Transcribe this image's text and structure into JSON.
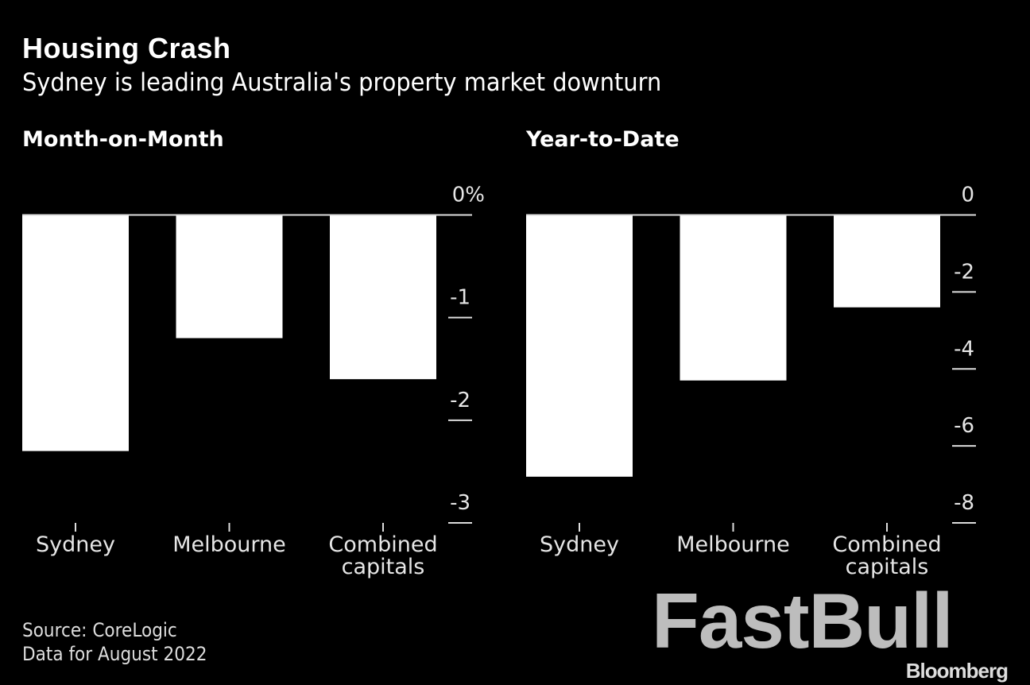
{
  "title": "Housing Crash",
  "subtitle": "Sydney is leading Australia's property market downturn",
  "source": "Source: CoreLogic",
  "note": "Data for August 2022",
  "watermark": "FastBull",
  "brand": "Bloomberg",
  "colors": {
    "background": "#000000",
    "bars": "#ffffff"
  },
  "chart_data": [
    {
      "type": "bar",
      "title": "Month-on-Month",
      "categories": [
        "Sydney",
        "Melbourne",
        "Combined capitals"
      ],
      "values": [
        -2.3,
        -1.2,
        -1.6
      ],
      "ylim": [
        -3,
        0
      ],
      "yticks": [
        0,
        -1,
        -2,
        -3
      ],
      "ytick_labels": [
        "0%",
        "-1",
        "-2",
        "-3"
      ],
      "grid": false
    },
    {
      "type": "bar",
      "title": "Year-to-Date",
      "categories": [
        "Sydney",
        "Melbourne",
        "Combined capitals"
      ],
      "values": [
        -6.8,
        -4.3,
        -2.4
      ],
      "ylim": [
        -8,
        0
      ],
      "yticks": [
        0,
        -2,
        -4,
        -6,
        -8
      ],
      "ytick_labels": [
        "0",
        "-2",
        "-4",
        "-6",
        "-8"
      ],
      "grid": false
    }
  ]
}
